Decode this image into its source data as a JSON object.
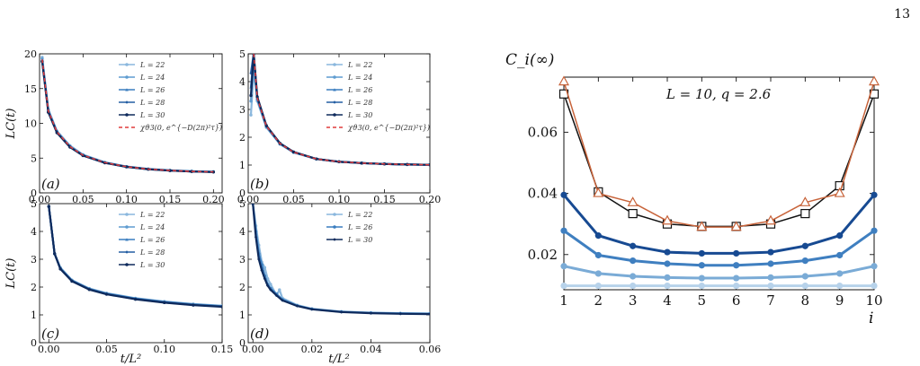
{
  "page_number": "13",
  "colors": {
    "L22": "#8ab7dd",
    "L24": "#5f9cd0",
    "L26": "#3a7dbf",
    "L28": "#245ea3",
    "L30": "#0e2a5c",
    "fit": "#e03c3c",
    "right_black": "#111111",
    "right_orange": "#c8643b"
  },
  "chart_data": [
    {
      "id": "a",
      "type": "line",
      "panel_label": "(a)",
      "ylabel": "LC(t)",
      "xlabel": "",
      "xlim": [
        0,
        0.21
      ],
      "ylim": [
        0,
        20
      ],
      "x_ticks": [
        "0.00",
        "0.05",
        "0.10",
        "0.15",
        "0.20"
      ],
      "y_ticks": [
        "0",
        "5",
        "10",
        "15",
        "20"
      ],
      "legend_position": "upper right",
      "series": [
        {
          "name": "L = 22",
          "x": [
            0.003,
            0.01,
            0.02,
            0.035,
            0.05,
            0.075,
            0.1,
            0.125,
            0.15,
            0.175,
            0.2
          ],
          "y": [
            19.5,
            12.0,
            8.9,
            6.8,
            5.5,
            4.4,
            3.8,
            3.45,
            3.25,
            3.12,
            3.05
          ]
        },
        {
          "name": "L = 24",
          "x": [
            0.003,
            0.01,
            0.02,
            0.035,
            0.05,
            0.075,
            0.1,
            0.125,
            0.15,
            0.175,
            0.2
          ],
          "y": [
            19.3,
            11.9,
            8.8,
            6.7,
            5.45,
            4.38,
            3.78,
            3.43,
            3.23,
            3.1,
            3.03
          ]
        },
        {
          "name": "L = 26",
          "x": [
            0.003,
            0.01,
            0.02,
            0.035,
            0.05,
            0.075,
            0.1,
            0.125,
            0.15,
            0.175,
            0.2
          ],
          "y": [
            19.1,
            11.8,
            8.75,
            6.65,
            5.4,
            4.35,
            3.76,
            3.42,
            3.22,
            3.09,
            3.02
          ]
        },
        {
          "name": "L = 28",
          "x": [
            0.003,
            0.01,
            0.02,
            0.035,
            0.05,
            0.075,
            0.1,
            0.125,
            0.15,
            0.175,
            0.2
          ],
          "y": [
            19.0,
            11.7,
            8.7,
            6.6,
            5.38,
            4.33,
            3.75,
            3.41,
            3.21,
            3.08,
            3.01
          ]
        },
        {
          "name": "L = 30",
          "x": [
            0.003,
            0.01,
            0.02,
            0.035,
            0.05,
            0.075,
            0.1,
            0.125,
            0.15,
            0.175,
            0.2
          ],
          "y": [
            18.9,
            11.6,
            8.65,
            6.58,
            5.36,
            4.32,
            3.74,
            3.4,
            3.2,
            3.07,
            3.0
          ]
        }
      ],
      "fit": {
        "name": "χϑ3(0, e^{−D(2π)²τ})",
        "x": [
          0.003,
          0.01,
          0.02,
          0.035,
          0.05,
          0.075,
          0.1,
          0.125,
          0.15,
          0.175,
          0.2
        ],
        "y": [
          19.2,
          11.8,
          8.78,
          6.66,
          5.42,
          4.36,
          3.77,
          3.42,
          3.22,
          3.09,
          3.02
        ]
      }
    },
    {
      "id": "b",
      "type": "line",
      "panel_label": "(b)",
      "ylabel": "",
      "xlabel": "",
      "xlim": [
        0,
        0.2
      ],
      "ylim": [
        0,
        5
      ],
      "x_ticks": [
        "0.00",
        "0.05",
        "0.10",
        "0.15",
        "0.20"
      ],
      "y_ticks": [
        "0",
        "1",
        "2",
        "3",
        "4",
        "5"
      ],
      "legend_position": "upper right",
      "series": [
        {
          "name": "L = 22",
          "x": [
            0.003,
            0.006,
            0.01,
            0.02,
            0.035,
            0.05,
            0.075,
            0.1,
            0.125,
            0.15,
            0.175,
            0.2
          ],
          "y": [
            2.8,
            4.4,
            3.3,
            2.35,
            1.75,
            1.45,
            1.22,
            1.12,
            1.07,
            1.04,
            1.02,
            1.01
          ]
        },
        {
          "name": "L = 24",
          "x": [
            0.003,
            0.006,
            0.01,
            0.02,
            0.035,
            0.05,
            0.075,
            0.1,
            0.125,
            0.15,
            0.175,
            0.2
          ],
          "y": [
            3.3,
            4.7,
            3.35,
            2.38,
            1.76,
            1.46,
            1.22,
            1.12,
            1.07,
            1.04,
            1.02,
            1.01
          ]
        },
        {
          "name": "L = 26",
          "x": [
            0.003,
            0.006,
            0.01,
            0.02,
            0.035,
            0.05,
            0.075,
            0.1,
            0.125,
            0.15,
            0.175,
            0.2
          ],
          "y": [
            3.8,
            4.9,
            3.4,
            2.4,
            1.77,
            1.46,
            1.22,
            1.12,
            1.07,
            1.04,
            1.02,
            1.01
          ]
        },
        {
          "name": "L = 28",
          "x": [
            0.003,
            0.006,
            0.01,
            0.02,
            0.035,
            0.05,
            0.075,
            0.1,
            0.125,
            0.15,
            0.175,
            0.2
          ],
          "y": [
            4.3,
            5.0,
            3.42,
            2.41,
            1.78,
            1.47,
            1.22,
            1.12,
            1.07,
            1.04,
            1.02,
            1.01
          ]
        },
        {
          "name": "L = 30",
          "x": [
            0.003,
            0.006,
            0.01,
            0.02,
            0.035,
            0.05,
            0.075,
            0.1,
            0.125,
            0.15,
            0.175,
            0.2
          ],
          "y": [
            3.5,
            5.0,
            3.45,
            2.42,
            1.78,
            1.47,
            1.22,
            1.12,
            1.07,
            1.04,
            1.02,
            1.01
          ]
        }
      ],
      "fit": {
        "name": "χϑ3(0, e^{−D(2π)²τ})",
        "x": [
          0.006,
          0.01,
          0.02,
          0.035,
          0.05,
          0.075,
          0.1,
          0.125,
          0.15,
          0.175,
          0.2
        ],
        "y": [
          5.0,
          3.4,
          2.4,
          1.77,
          1.46,
          1.22,
          1.12,
          1.07,
          1.04,
          1.02,
          1.01
        ]
      }
    },
    {
      "id": "c",
      "type": "line",
      "panel_label": "(c)",
      "ylabel": "LC(t)",
      "xlabel": "t/L²",
      "xlim": [
        -0.008,
        0.15
      ],
      "ylim": [
        0,
        5
      ],
      "x_ticks": [
        "0.00",
        "0.05",
        "0.10",
        "0.15"
      ],
      "y_ticks": [
        "0",
        "1",
        "2",
        "3",
        "4",
        "5"
      ],
      "legend_position": "upper right",
      "series": [
        {
          "name": "L = 22",
          "x": [
            0.0,
            0.005,
            0.01,
            0.02,
            0.035,
            0.05,
            0.075,
            0.1,
            0.125,
            0.15
          ],
          "y": [
            4.9,
            3.2,
            2.7,
            2.25,
            1.95,
            1.78,
            1.6,
            1.48,
            1.39,
            1.33
          ]
        },
        {
          "name": "L = 24",
          "x": [
            0.0,
            0.005,
            0.01,
            0.02,
            0.035,
            0.05,
            0.075,
            0.1,
            0.125,
            0.15
          ],
          "y": [
            4.9,
            3.2,
            2.68,
            2.24,
            1.94,
            1.77,
            1.59,
            1.47,
            1.38,
            1.32
          ]
        },
        {
          "name": "L = 26",
          "x": [
            0.0,
            0.005,
            0.01,
            0.02,
            0.035,
            0.05,
            0.075,
            0.1,
            0.125,
            0.15
          ],
          "y": [
            4.9,
            3.2,
            2.67,
            2.23,
            1.93,
            1.76,
            1.58,
            1.46,
            1.37,
            1.31
          ]
        },
        {
          "name": "L = 28",
          "x": [
            0.0,
            0.005,
            0.01,
            0.02,
            0.035,
            0.05,
            0.075,
            0.1,
            0.125,
            0.15
          ],
          "y": [
            4.9,
            3.2,
            2.66,
            2.22,
            1.92,
            1.75,
            1.57,
            1.45,
            1.36,
            1.3
          ]
        },
        {
          "name": "L = 30",
          "x": [
            0.0,
            0.005,
            0.01,
            0.02,
            0.035,
            0.05,
            0.075,
            0.1,
            0.125,
            0.15
          ],
          "y": [
            4.9,
            3.2,
            2.65,
            2.21,
            1.91,
            1.74,
            1.56,
            1.44,
            1.35,
            1.29
          ]
        }
      ]
    },
    {
      "id": "d",
      "type": "line",
      "panel_label": "(d)",
      "ylabel": "",
      "xlabel": "t/L²",
      "xlim": [
        -0.0016,
        0.06
      ],
      "ylim": [
        0,
        5
      ],
      "x_ticks": [
        "0.00",
        "0.02",
        "0.04",
        "0.06"
      ],
      "y_ticks": [
        "0",
        "1",
        "2",
        "3",
        "4",
        "5"
      ],
      "legend_position": "upper right",
      "series": [
        {
          "name": "L = 22",
          "x": [
            0.0,
            0.001,
            0.002,
            0.003,
            0.004,
            0.005,
            0.006,
            0.008,
            0.009,
            0.01,
            0.015,
            0.02,
            0.03,
            0.04,
            0.05,
            0.06
          ],
          "y": [
            5.0,
            4.2,
            3.5,
            2.9,
            2.7,
            2.3,
            2.1,
            1.7,
            1.9,
            1.6,
            1.35,
            1.22,
            1.12,
            1.08,
            1.06,
            1.05
          ]
        },
        {
          "name": "L = 26",
          "x": [
            0.0,
            0.001,
            0.002,
            0.003,
            0.004,
            0.005,
            0.006,
            0.008,
            0.01,
            0.015,
            0.02,
            0.03,
            0.04,
            0.05,
            0.06
          ],
          "y": [
            5.0,
            4.0,
            3.2,
            2.8,
            2.4,
            2.1,
            1.95,
            1.75,
            1.55,
            1.33,
            1.21,
            1.11,
            1.07,
            1.05,
            1.04
          ]
        },
        {
          "name": "L = 30",
          "x": [
            0.0,
            0.001,
            0.002,
            0.003,
            0.004,
            0.005,
            0.006,
            0.008,
            0.01,
            0.015,
            0.02,
            0.03,
            0.04,
            0.05,
            0.06
          ],
          "y": [
            5.0,
            3.8,
            3.0,
            2.6,
            2.3,
            2.05,
            1.9,
            1.7,
            1.52,
            1.32,
            1.2,
            1.1,
            1.06,
            1.04,
            1.03
          ]
        }
      ]
    },
    {
      "id": "right",
      "type": "line",
      "title": "",
      "ylabel": "C_i(∞)",
      "xlabel": "i",
      "annotation": "L = 10,  q = 2.6",
      "xlim": [
        1,
        10
      ],
      "ylim": [
        0.0085,
        0.078
      ],
      "x_ticks": [
        "1",
        "2",
        "3",
        "4",
        "5",
        "6",
        "7",
        "8",
        "9",
        "10"
      ],
      "y_ticks": [
        "0.02",
        "0.04",
        "0.06"
      ],
      "x": [
        1,
        2,
        3,
        4,
        5,
        6,
        7,
        8,
        9,
        10
      ],
      "series": [
        {
          "marker": "circle",
          "color": "#b7d2ea",
          "values": [
            0.0098,
            0.0098,
            0.0098,
            0.0098,
            0.0098,
            0.0098,
            0.0098,
            0.0098,
            0.0098,
            0.0098
          ]
        },
        {
          "marker": "circle",
          "color": "#7aabd6",
          "values": [
            0.0162,
            0.0138,
            0.0129,
            0.0125,
            0.0123,
            0.0123,
            0.0125,
            0.0129,
            0.0138,
            0.0162
          ]
        },
        {
          "marker": "circle",
          "color": "#3f7fc0",
          "values": [
            0.0278,
            0.0198,
            0.018,
            0.017,
            0.0165,
            0.0165,
            0.017,
            0.018,
            0.0198,
            0.0278
          ]
        },
        {
          "marker": "circle",
          "color": "#174a92",
          "values": [
            0.0395,
            0.0262,
            0.0228,
            0.0208,
            0.0204,
            0.0204,
            0.0208,
            0.0228,
            0.0262,
            0.0395
          ]
        },
        {
          "marker": "square",
          "color": "#111111",
          "values": [
            0.0725,
            0.0405,
            0.0334,
            0.03,
            0.0292,
            0.0292,
            0.03,
            0.0334,
            0.0425,
            0.0725
          ]
        },
        {
          "marker": "triangle",
          "color": "#c8643b",
          "values": [
            0.0765,
            0.04,
            0.037,
            0.031,
            0.029,
            0.029,
            0.031,
            0.037,
            0.04,
            0.0765
          ]
        }
      ]
    }
  ]
}
